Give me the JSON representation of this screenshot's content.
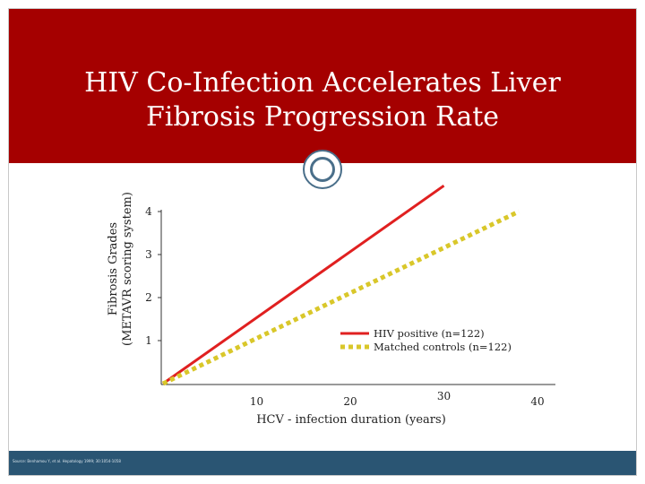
{
  "slide": {
    "title_line1": "HIV Co-Infection Accelerates Liver",
    "title_line2": "Fibrosis Progression Rate",
    "footer": "Source: Benhamou Y, et al. Hepatology 1999; 30:1054-1058"
  },
  "colors": {
    "title_band": "#a50000",
    "footer_band": "#2a5573",
    "hiv_series": "#e02020",
    "control_series": "#d9c72a",
    "ring": "#4a6f8a"
  },
  "icons": {
    "ring": "ring-icon"
  },
  "chart_data": {
    "type": "line",
    "xlabel": "HCV - infection duration (years)",
    "ylabel_line1": "Fibrosis Grades",
    "ylabel_line2": "(METAVR scoring system)",
    "x_ticks": [
      10,
      20,
      30,
      40
    ],
    "y_ticks": [
      1,
      2,
      3,
      4
    ],
    "xlim": [
      0,
      40
    ],
    "ylim": [
      0,
      4.5
    ],
    "grid": false,
    "legend_placement": "right",
    "series": [
      {
        "name": "HIV positive (n=122)",
        "style": "solid",
        "color": "#e02020",
        "points": [
          [
            0,
            0
          ],
          [
            30,
            4.6
          ]
        ]
      },
      {
        "name": "Matched controls (n=122)",
        "style": "dotted",
        "color": "#d9c72a",
        "points": [
          [
            0,
            0
          ],
          [
            38,
            4.0
          ]
        ]
      }
    ]
  }
}
